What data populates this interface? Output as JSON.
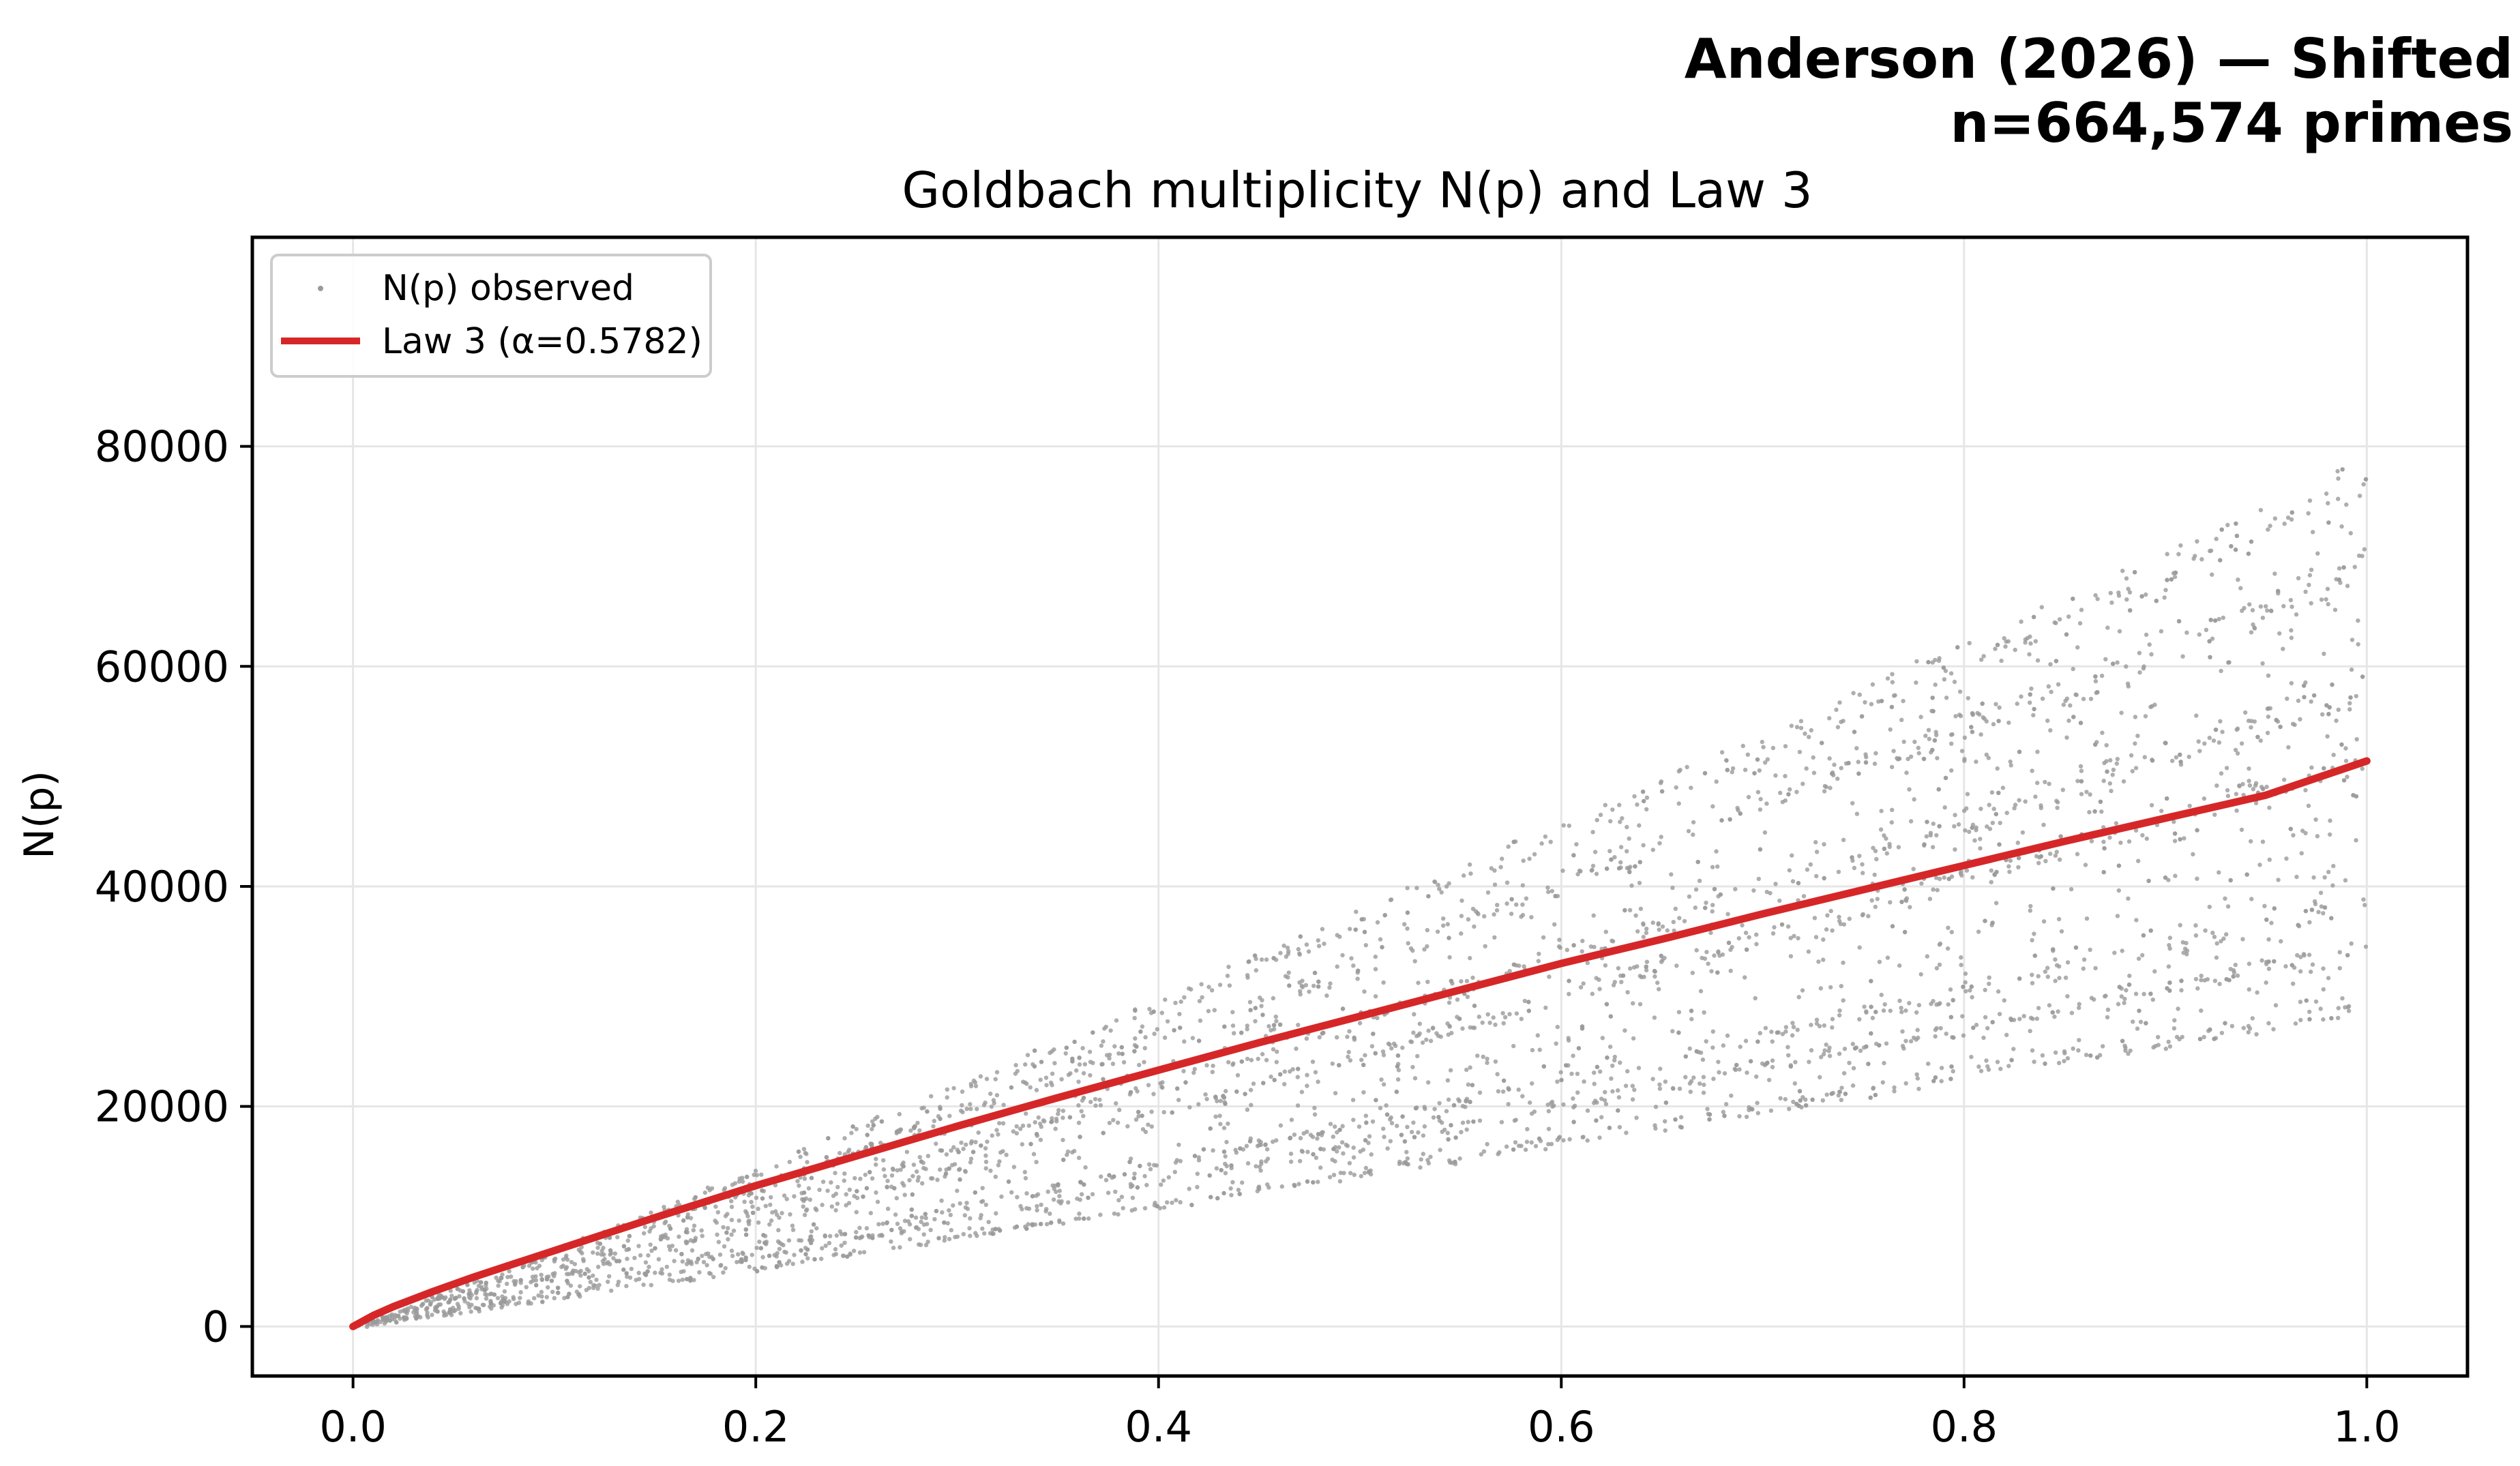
{
  "header": {
    "line1": "Anderson (2026) — Shifted",
    "line2": "n=664,574 primes"
  },
  "colors": {
    "scatter": "#9a9a9a",
    "law_line": "#d62728",
    "grid": "#e6e6e6",
    "axes": "#000000"
  },
  "chart_data": {
    "type": "scatter",
    "title": "Goldbach multiplicity N(p) and Law 3",
    "xlabel": "",
    "ylabel": "N(p)",
    "xlim": [
      -0.05,
      1.05
    ],
    "ylim": [
      -4500,
      99000
    ],
    "xticks": [
      0.0,
      0.2,
      0.4,
      0.6,
      0.8,
      1.0
    ],
    "xtick_labels": [
      "0.0",
      "0.2",
      "0.4",
      "0.6",
      "0.8",
      "1.0"
    ],
    "yticks": [
      0,
      20000,
      40000,
      60000,
      80000
    ],
    "ytick_labels": [
      "0",
      "20000",
      "40000",
      "60000",
      "80000"
    ],
    "grid": true,
    "legend_position": "top-left",
    "series": [
      {
        "name": "N(p) observed",
        "kind": "scatter",
        "color": "#9a9a9a",
        "band_multipliers_at_x1": [
          29000,
          34500,
          38500,
          51500,
          58000,
          69000,
          77000
        ],
        "approx_point_count_drawn": 4200
      },
      {
        "name": "Law 3 (α=0.5782)",
        "kind": "line",
        "color": "#d62728",
        "x": [
          0.0,
          0.01,
          0.02,
          0.04,
          0.06,
          0.08,
          0.1,
          0.15,
          0.2,
          0.25,
          0.3,
          0.35,
          0.4,
          0.45,
          0.5,
          0.55,
          0.6,
          0.65,
          0.7,
          0.75,
          0.8,
          0.85,
          0.9,
          0.95,
          1.0
        ],
        "y": [
          0,
          1000,
          1800,
          3200,
          4500,
          5700,
          6900,
          9900,
          12800,
          15500,
          18200,
          20800,
          23300,
          25800,
          28200,
          30600,
          33000,
          35200,
          37500,
          39700,
          41900,
          44100,
          46200,
          48300,
          51400
        ]
      }
    ]
  }
}
